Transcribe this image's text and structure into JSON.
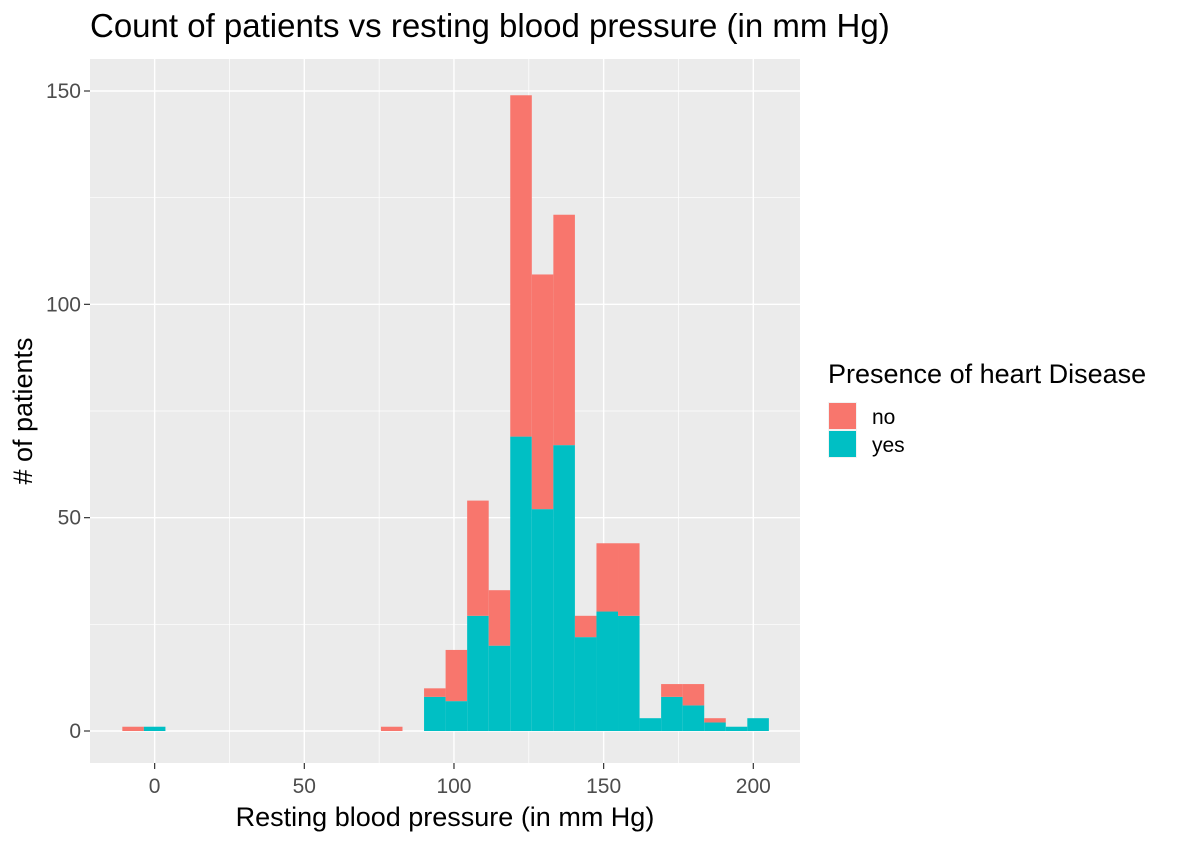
{
  "chart_data": {
    "type": "bar",
    "stacked": true,
    "title": "Count of patients vs resting blood pressure (in mm Hg)",
    "xlabel": "Resting blood pressure (in mm Hg)",
    "ylabel": "# of patients",
    "xlim": [
      -21.6,
      215.6
    ],
    "ylim": [
      -7.5,
      157.5
    ],
    "xticks": [
      0,
      50,
      100,
      150,
      200
    ],
    "yticks": [
      0,
      50,
      100,
      150
    ],
    "grid": true,
    "bin_width": 7.2,
    "bin_centers": [
      -7.2,
      0,
      79.2,
      93.6,
      100.8,
      108,
      115.2,
      122.4,
      129.6,
      136.8,
      144,
      151.2,
      158.4,
      165.6,
      172.8,
      180,
      187.2,
      194.4,
      201.6
    ],
    "series": [
      {
        "name": "no",
        "color": "#F8766D",
        "values": [
          1,
          0,
          1,
          2,
          12,
          27,
          13,
          80,
          55,
          54,
          5,
          16,
          17,
          0,
          3,
          5,
          1,
          0,
          0
        ]
      },
      {
        "name": "yes",
        "color": "#00BFC4",
        "values": [
          0,
          1,
          0,
          8,
          7,
          27,
          20,
          69,
          52,
          67,
          22,
          28,
          27,
          3,
          8,
          6,
          2,
          1,
          3
        ]
      }
    ],
    "legend": {
      "title": "Presence of heart Disease",
      "position": "right",
      "entries": [
        "no",
        "yes"
      ]
    }
  }
}
